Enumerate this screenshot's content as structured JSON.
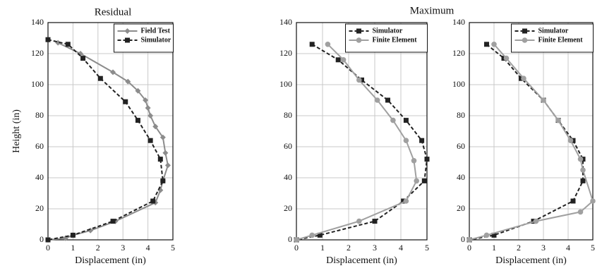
{
  "chart_data": [
    {
      "type": "line",
      "title": "Residual",
      "xlabel": "Displacement (in)",
      "ylabel": "Height (in)",
      "xlim": [
        0,
        5
      ],
      "ylim": [
        0,
        140
      ],
      "xticks": [
        0,
        1,
        2,
        3,
        4,
        5
      ],
      "yticks": [
        0,
        20,
        40,
        60,
        80,
        100,
        120,
        140
      ],
      "grid": true,
      "legend": "upper right",
      "series": [
        {
          "name": "Field Test",
          "color": "#8c8c8c",
          "marker": "diamond",
          "dash": false,
          "x": [
            0.4,
            1.3,
            2.6,
            3.2,
            3.6,
            3.9,
            4.0,
            4.1,
            4.3,
            4.6,
            4.7,
            4.8,
            4.6,
            4.5,
            4.3,
            2.7,
            1.7,
            1.0,
            0.7,
            0
          ],
          "values": [
            127,
            120,
            108,
            102,
            96,
            90,
            85,
            80,
            73,
            66,
            56,
            48,
            38,
            32,
            24,
            12,
            6,
            3,
            1,
            0
          ]
        },
        {
          "name": "Simulator",
          "color": "#222222",
          "marker": "square",
          "dash": true,
          "x": [
            0,
            0.8,
            1.4,
            2.1,
            3.1,
            3.6,
            4.1,
            4.5,
            4.6,
            4.2,
            2.6,
            1.0,
            0
          ],
          "values": [
            129,
            126,
            117,
            104,
            89,
            77,
            64,
            52,
            38,
            25,
            12,
            3,
            0
          ]
        }
      ]
    },
    {
      "type": "line",
      "title": "Maximum",
      "xlabel": "Displacement (in)",
      "xlim": [
        0,
        5
      ],
      "ylim": [
        0,
        140
      ],
      "xticks": [
        0,
        1,
        2,
        3,
        4,
        5
      ],
      "yticks": [
        0,
        20,
        40,
        60,
        80,
        100,
        120,
        140
      ],
      "grid": true,
      "legend": "upper right",
      "series": [
        {
          "name": "Simulator",
          "color": "#222222",
          "marker": "square",
          "dash": true,
          "x": [
            0.6,
            1.6,
            2.5,
            3.5,
            4.2,
            4.8,
            5.0,
            4.9,
            4.1,
            3.0,
            0.9,
            0
          ],
          "values": [
            126,
            116,
            103,
            90,
            77,
            64,
            52,
            38,
            25,
            12,
            3,
            0
          ]
        },
        {
          "name": "Finite Element",
          "color": "#a0a0a0",
          "marker": "circle",
          "dash": false,
          "x": [
            1.2,
            1.8,
            2.4,
            3.1,
            3.7,
            4.2,
            4.5,
            4.6,
            4.2,
            2.4,
            0.6,
            0
          ],
          "values": [
            126,
            116,
            103,
            90,
            77,
            64,
            51,
            38,
            25,
            12,
            3,
            0
          ]
        }
      ]
    },
    {
      "type": "line",
      "xlabel": "Displacement (in)",
      "xlim": [
        0,
        5
      ],
      "ylim": [
        0,
        140
      ],
      "xticks": [
        0,
        1,
        2,
        3,
        4,
        5
      ],
      "yticks": [
        0,
        20,
        40,
        60,
        80,
        100,
        120,
        140
      ],
      "grid": true,
      "legend": "upper right",
      "series": [
        {
          "name": "Simulator",
          "color": "#222222",
          "marker": "square",
          "dash": true,
          "x": [
            0.7,
            1.4,
            2.1,
            3.0,
            3.6,
            4.2,
            4.6,
            4.6,
            4.2,
            2.6,
            1.0,
            0
          ],
          "values": [
            126,
            117,
            104,
            90,
            77,
            64,
            52,
            38,
            25,
            12,
            3,
            0
          ]
        },
        {
          "name": "Finite Element",
          "color": "#a0a0a0",
          "marker": "circle",
          "dash": false,
          "x": [
            1.0,
            1.5,
            2.2,
            3.0,
            3.6,
            4.1,
            4.5,
            4.6,
            5.0,
            4.5,
            2.7,
            0.7,
            0
          ],
          "values": [
            126,
            117,
            104,
            90,
            77,
            64,
            52,
            45,
            25,
            18,
            12,
            3,
            0
          ]
        }
      ]
    }
  ]
}
